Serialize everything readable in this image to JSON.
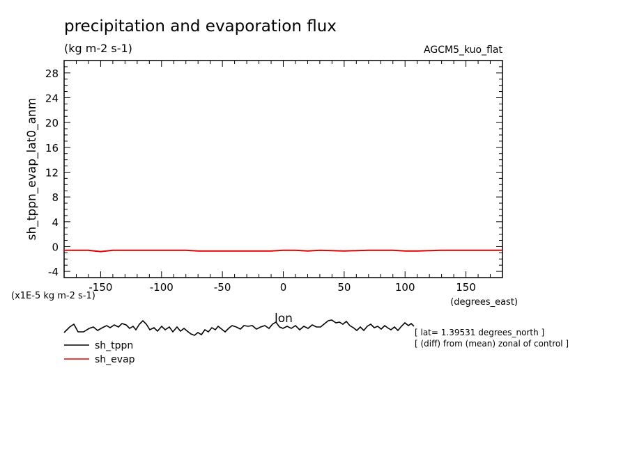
{
  "title": "precipitation and evaporation flux",
  "units": "(kg m-2 s-1)",
  "model_label": "AGCM5_kuo_flat",
  "ylabel": "sh_tppn_evap_lat0_anm",
  "yscale_note": "(x1E-5 kg m-2 s-1)",
  "xunits": "(degrees_east)",
  "xlabel": "lon",
  "notes": [
    "[ lat= 1.39531 degrees_north ]",
    "[ (diff) from (mean) zonal of control ]"
  ],
  "legend": [
    {
      "label": "sh_tppn",
      "color": "#000000"
    },
    {
      "label": "sh_evap",
      "color": "#e00000"
    }
  ],
  "chart_data": {
    "type": "line",
    "title": "precipitation and evaporation flux",
    "xlabel": "lon",
    "ylabel": "sh_tppn_evap_lat0_anm",
    "xlim": [
      -180,
      180
    ],
    "ylim": [
      -5,
      30
    ],
    "xticks": [
      -150,
      -100,
      -50,
      0,
      50,
      100,
      150
    ],
    "yticks": [
      -4,
      0,
      4,
      8,
      12,
      16,
      20,
      24,
      28
    ],
    "grid": false,
    "legend_position": "bottom-left, below plot",
    "series": [
      {
        "name": "sh_evap",
        "color": "#e00000",
        "x": [
          -180,
          -160,
          -150,
          -140,
          -120,
          -100,
          -80,
          -70,
          -50,
          -30,
          -10,
          0,
          10,
          20,
          30,
          50,
          70,
          90,
          100,
          110,
          130,
          150,
          170,
          180
        ],
        "y": [
          -0.6,
          -0.6,
          -0.8,
          -0.6,
          -0.6,
          -0.6,
          -0.6,
          -0.7,
          -0.7,
          -0.7,
          -0.7,
          -0.6,
          -0.6,
          -0.7,
          -0.6,
          -0.7,
          -0.6,
          -0.6,
          -0.7,
          -0.7,
          -0.6,
          -0.6,
          -0.6,
          -0.6
        ]
      }
    ]
  },
  "tppn_trace": [
    [
      92,
      478
    ],
    [
      100,
      470
    ],
    [
      106,
      466
    ],
    [
      112,
      477
    ],
    [
      120,
      477
    ],
    [
      128,
      472
    ],
    [
      134,
      470
    ],
    [
      140,
      475
    ],
    [
      147,
      471
    ],
    [
      153,
      468
    ],
    [
      158,
      471
    ],
    [
      164,
      467
    ],
    [
      170,
      470
    ],
    [
      175,
      465
    ],
    [
      181,
      467
    ],
    [
      186,
      472
    ],
    [
      191,
      469
    ],
    [
      195,
      474
    ],
    [
      200,
      466
    ],
    [
      205,
      461
    ],
    [
      210,
      466
    ],
    [
      215,
      474
    ],
    [
      221,
      471
    ],
    [
      226,
      476
    ],
    [
      232,
      469
    ],
    [
      237,
      474
    ],
    [
      243,
      470
    ],
    [
      248,
      477
    ],
    [
      254,
      470
    ],
    [
      259,
      476
    ],
    [
      264,
      472
    ],
    [
      270,
      477
    ],
    [
      274,
      480
    ],
    [
      279,
      482
    ],
    [
      284,
      478
    ],
    [
      289,
      481
    ],
    [
      294,
      474
    ],
    [
      299,
      477
    ],
    [
      304,
      471
    ],
    [
      309,
      474
    ],
    [
      313,
      469
    ],
    [
      318,
      473
    ],
    [
      323,
      477
    ],
    [
      328,
      472
    ],
    [
      333,
      468
    ],
    [
      339,
      470
    ],
    [
      345,
      473
    ],
    [
      350,
      468
    ],
    [
      356,
      469
    ],
    [
      362,
      468
    ],
    [
      368,
      473
    ],
    [
      374,
      470
    ],
    [
      380,
      468
    ],
    [
      386,
      472
    ],
    [
      391,
      466
    ],
    [
      396,
      463
    ],
    [
      401,
      470
    ],
    [
      406,
      472
    ],
    [
      412,
      469
    ],
    [
      418,
      472
    ],
    [
      424,
      468
    ],
    [
      430,
      474
    ],
    [
      436,
      469
    ],
    [
      442,
      472
    ],
    [
      448,
      467
    ],
    [
      454,
      470
    ],
    [
      460,
      470
    ],
    [
      466,
      465
    ],
    [
      471,
      461
    ],
    [
      476,
      460
    ],
    [
      482,
      464
    ],
    [
      487,
      463
    ],
    [
      492,
      466
    ],
    [
      497,
      462
    ],
    [
      502,
      468
    ],
    [
      507,
      471
    ],
    [
      512,
      475
    ],
    [
      517,
      470
    ],
    [
      522,
      475
    ],
    [
      527,
      469
    ],
    [
      532,
      466
    ],
    [
      537,
      471
    ],
    [
      542,
      469
    ],
    [
      547,
      473
    ],
    [
      552,
      468
    ],
    [
      556,
      471
    ],
    [
      561,
      474
    ],
    [
      566,
      470
    ],
    [
      571,
      475
    ],
    [
      576,
      469
    ],
    [
      581,
      464
    ],
    [
      586,
      468
    ],
    [
      590,
      465
    ],
    [
      594,
      469
    ]
  ]
}
